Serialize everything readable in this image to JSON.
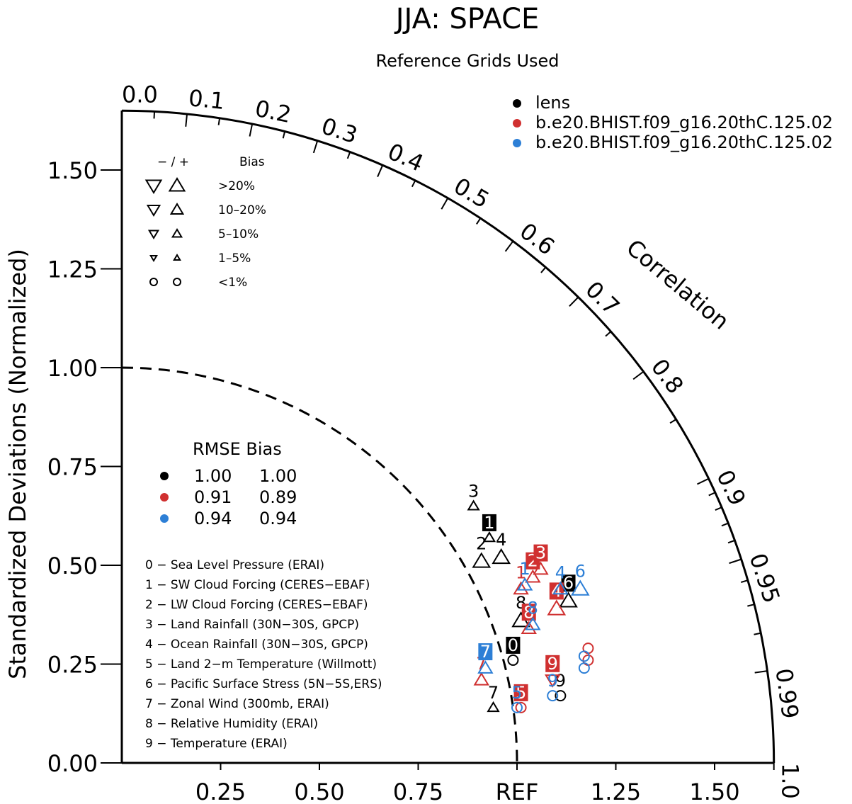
{
  "chart_data": {
    "type": "scatter",
    "title": "JJA: SPACE",
    "subtitle": "Reference Grids Used",
    "ylabel": "Standardized Deviations (Normalized)",
    "arc_label": "Correlation",
    "ref_label": "REF",
    "xlim": [
      0,
      1.65
    ],
    "ylim": [
      0,
      1.65
    ],
    "x_ticks": [
      "0.25",
      "0.50",
      "0.75",
      "REF",
      "1.25",
      "1.50"
    ],
    "x_tick_values": [
      0.25,
      0.5,
      0.75,
      1.0,
      1.25,
      1.5
    ],
    "y_ticks": [
      "0.00",
      "0.25",
      "0.50",
      "0.75",
      "1.00",
      "1.25",
      "1.50"
    ],
    "y_tick_values": [
      0,
      0.25,
      0.5,
      0.75,
      1.0,
      1.25,
      1.5
    ],
    "corr_ticks": [
      {
        "label": "0.0",
        "value": 0.0
      },
      {
        "label": "0.1",
        "value": 0.1
      },
      {
        "label": "0.2",
        "value": 0.2
      },
      {
        "label": "0.3",
        "value": 0.3
      },
      {
        "label": "0.4",
        "value": 0.4
      },
      {
        "label": "0.5",
        "value": 0.5
      },
      {
        "label": "0.6",
        "value": 0.6
      },
      {
        "label": "0.7",
        "value": 0.7
      },
      {
        "label": "0.8",
        "value": 0.8
      },
      {
        "label": "0.9",
        "value": 0.9
      },
      {
        "label": "0.95",
        "value": 0.95
      },
      {
        "label": "0.99",
        "value": 0.99
      },
      {
        "label": "1.0",
        "value": 1.0
      }
    ],
    "minor_corr_ticks": [
      0.05,
      0.15,
      0.25,
      0.35,
      0.45,
      0.55,
      0.65,
      0.75,
      0.85,
      0.91,
      0.92,
      0.93,
      0.94,
      0.96,
      0.97,
      0.98
    ],
    "legend": {
      "placement": "top-right",
      "entries": [
        {
          "name": "lens",
          "color": "#000000"
        },
        {
          "name": "b.e20.BHIST.f09_g16.20thC.125.02",
          "color": "#d03030"
        },
        {
          "name": "b.e20.BHIST.f09_g16.20thC.125.02",
          "color": "#2d7fd6"
        }
      ]
    },
    "bias_legend": {
      "header_minus_plus": "− / +",
      "header_bias": "Bias",
      "rows": [
        "&gt;20%",
        "10–20%",
        "5–10%",
        "1–5%",
        "&lt;1%"
      ]
    },
    "rmse_table": {
      "header": "RMSE Bias",
      "rows": [
        {
          "color": "#000000",
          "rmse": "1.00",
          "bias": "1.00"
        },
        {
          "color": "#d03030",
          "rmse": "0.91",
          "bias": "0.89"
        },
        {
          "color": "#2d7fd6",
          "rmse": "0.94",
          "bias": "0.94"
        }
      ]
    },
    "variables": [
      "0 − Sea Level Pressure (ERAI)",
      "1 − SW Cloud Forcing (CERES−EBAF)",
      "2 − LW Cloud Forcing (CERES−EBAF)",
      "3 − Land Rainfall (30N−30S, GPCP)",
      "4 − Ocean Rainfall (30N−30S, GPCP)",
      "5 − Land 2−m Temperature (Willmott)",
      "6 − Pacific Surface Stress (5N−5S,ERS)",
      "7 − Zonal Wind (300mb, ERAI)",
      "8 − Relative Humidity (ERAI)",
      "9 − Temperature (ERAI)"
    ],
    "series": [
      {
        "name": "lens",
        "color": "#000000",
        "points": [
          {
            "id": "0",
            "x": 0.99,
            "y": 0.26,
            "marker": "circle",
            "size": 1,
            "boxed": true
          },
          {
            "id": "1",
            "x": 0.93,
            "y": 0.57,
            "marker": "up",
            "size": 1,
            "boxed": true
          },
          {
            "id": "2",
            "x": 0.91,
            "y": 0.51,
            "marker": "up",
            "size": 3,
            "boxed": false
          },
          {
            "id": "3",
            "x": 0.89,
            "y": 0.65,
            "marker": "up",
            "size": 1,
            "boxed": false
          },
          {
            "id": "4",
            "x": 0.96,
            "y": 0.52,
            "marker": "up",
            "size": 3,
            "boxed": false
          },
          {
            "id": "6",
            "x": 1.13,
            "y": 0.41,
            "marker": "up",
            "size": 3,
            "boxed": true
          },
          {
            "id": "7",
            "x": 0.94,
            "y": 0.14,
            "marker": "up",
            "size": 1,
            "boxed": false
          },
          {
            "id": "8",
            "x": 1.01,
            "y": 0.36,
            "marker": "up",
            "size": 3,
            "boxed": false
          },
          {
            "id": "9",
            "x": 1.11,
            "y": 0.17,
            "marker": "circle",
            "size": 1,
            "boxed": false
          }
        ]
      },
      {
        "name": "b.e20.BHIST.f09_g16.20thC.125.02",
        "color": "#d03030",
        "points": [
          {
            "id": "1",
            "x": 1.01,
            "y": 0.44,
            "marker": "up",
            "size": 2,
            "boxed": false
          },
          {
            "id": "2",
            "x": 1.04,
            "y": 0.47,
            "marker": "up",
            "size": 2,
            "boxed": true
          },
          {
            "id": "3",
            "x": 1.06,
            "y": 0.49,
            "marker": "up",
            "size": 2,
            "boxed": true
          },
          {
            "id": "4",
            "x": 1.1,
            "y": 0.39,
            "marker": "up",
            "size": 3,
            "boxed": true
          },
          {
            "id": "5",
            "x": 1.01,
            "y": 0.14,
            "marker": "circle",
            "size": 1,
            "boxed": true
          },
          {
            "id": "7",
            "x": 0.91,
            "y": 0.21,
            "marker": "up",
            "size": 2,
            "boxed": false
          },
          {
            "id": "8",
            "x": 1.03,
            "y": 0.34,
            "marker": "up",
            "size": 2,
            "boxed": true
          },
          {
            "id": "9",
            "x": 1.09,
            "y": 0.21,
            "marker": "down",
            "size": 2,
            "boxed": true
          },
          {
            "id": "",
            "x": 1.18,
            "y": 0.29,
            "marker": "circle",
            "size": 1,
            "boxed": false
          },
          {
            "id": "",
            "x": 1.18,
            "y": 0.26,
            "marker": "circle",
            "size": 1,
            "boxed": false
          }
        ]
      },
      {
        "name": "b.e20.BHIST.f09_g16.20thC.125.02",
        "color": "#2d7fd6",
        "points": [
          {
            "id": "1",
            "x": 1.02,
            "y": 0.45,
            "marker": "up",
            "size": 2,
            "boxed": false
          },
          {
            "id": "4",
            "x": 1.11,
            "y": 0.44,
            "marker": "up",
            "size": 2,
            "boxed": false
          },
          {
            "id": "5",
            "x": 1.0,
            "y": 0.14,
            "marker": "circle",
            "size": 1,
            "boxed": false
          },
          {
            "id": "6",
            "x": 1.16,
            "y": 0.44,
            "marker": "up",
            "size": 3,
            "boxed": false
          },
          {
            "id": "7",
            "x": 0.92,
            "y": 0.24,
            "marker": "up",
            "size": 2,
            "boxed": true
          },
          {
            "id": "8",
            "x": 1.04,
            "y": 0.35,
            "marker": "up",
            "size": 2,
            "boxed": false
          },
          {
            "id": "9",
            "x": 1.09,
            "y": 0.17,
            "marker": "circle",
            "size": 1,
            "boxed": false
          },
          {
            "id": "",
            "x": 1.17,
            "y": 0.27,
            "marker": "circle",
            "size": 1,
            "boxed": false
          },
          {
            "id": "",
            "x": 1.17,
            "y": 0.24,
            "marker": "circle",
            "size": 1,
            "boxed": false
          }
        ]
      }
    ]
  }
}
